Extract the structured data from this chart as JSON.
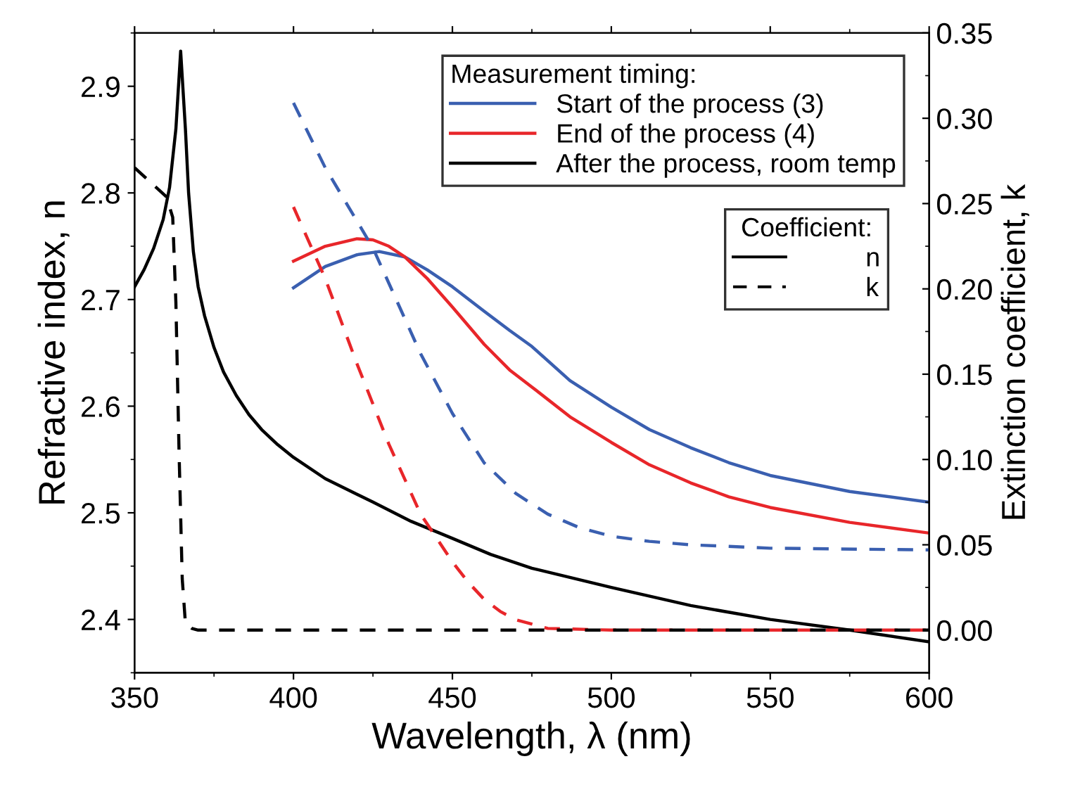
{
  "chart_data": {
    "type": "line",
    "xlabel": "Wavelength, λ (nm)",
    "ylabel": "Refractive index, n",
    "y2label": "Extinction coefficient, k",
    "xlim": [
      350,
      600
    ],
    "xticks": [
      350,
      400,
      450,
      500,
      550,
      600
    ],
    "ylim": [
      2.35,
      2.95
    ],
    "yticks": [
      2.4,
      2.5,
      2.6,
      2.7,
      2.8,
      2.9
    ],
    "y2lim": [
      -0.025,
      0.35
    ],
    "y2ticks": [
      {
        "value": 0,
        "label": "0.00"
      },
      0.05,
      {
        "value": 0.1,
        "label": "0.10"
      },
      0.15,
      {
        "value": 0.2,
        "label": "0.20"
      },
      0.25,
      {
        "value": 0.3,
        "label": "0.30"
      },
      0.35
    ],
    "legend": "top right",
    "legend_title": "Measurement timing:",
    "grid": false,
    "marker": "none",
    "annotations": [
      "Coefficient:",
      "n",
      "k"
    ],
    "series": [
      {
        "name": "Start of the process (3)",
        "color": "#3a5fb0",
        "line_style": "solid",
        "x": [
          400,
          410,
          420,
          427,
          435,
          442,
          450,
          460,
          468,
          475,
          487,
          500,
          512,
          525,
          537,
          550,
          575,
          600
        ],
        "values": [
          2.711,
          2.731,
          2.742,
          2.745,
          2.74,
          2.728,
          2.712,
          2.689,
          2.671,
          2.656,
          2.624,
          2.599,
          2.578,
          2.561,
          2.547,
          2.535,
          2.52,
          2.51
        ]
      },
      {
        "name": "End of the process (4)",
        "color": "#e8262a",
        "line_style": "solid",
        "x": [
          400,
          410,
          420,
          425,
          430,
          435,
          442,
          450,
          460,
          468,
          475,
          487,
          500,
          512,
          525,
          537,
          550,
          575,
          600
        ],
        "values": [
          2.736,
          2.75,
          2.757,
          2.756,
          2.75,
          2.74,
          2.72,
          2.693,
          2.658,
          2.634,
          2.618,
          2.59,
          2.566,
          2.545,
          2.528,
          2.515,
          2.505,
          2.491,
          2.481
        ]
      },
      {
        "name": "After the process, room temp",
        "color": "#000000",
        "line_style": "solid",
        "x": [
          350,
          353,
          356,
          359,
          361,
          363,
          364.5,
          366,
          367,
          368.5,
          370,
          372,
          375,
          378,
          382,
          386,
          390,
          395,
          400,
          410,
          425,
          437,
          450,
          462,
          475,
          500,
          525,
          550,
          575,
          600
        ],
        "values": [
          2.712,
          2.728,
          2.748,
          2.775,
          2.805,
          2.86,
          2.933,
          2.86,
          2.8,
          2.745,
          2.712,
          2.685,
          2.655,
          2.632,
          2.61,
          2.592,
          2.578,
          2.564,
          2.552,
          2.532,
          2.51,
          2.492,
          2.476,
          2.461,
          2.448,
          2.43,
          2.413,
          2.4,
          2.39,
          2.379
        ]
      },
      {
        "color": "#3a5fb0",
        "axis": "y2",
        "line_style": "dashed",
        "x": [
          400,
          410,
          425,
          440,
          450,
          460,
          470,
          480,
          490,
          500,
          512,
          525,
          550,
          600
        ],
        "values": [
          0.309,
          0.271,
          0.224,
          0.162,
          0.127,
          0.098,
          0.08,
          0.068,
          0.06,
          0.055,
          0.052,
          0.05,
          0.048,
          0.047
        ]
      },
      {
        "color": "#e8262a",
        "axis": "y2",
        "line_style": "dashed",
        "x": [
          400,
          410,
          420,
          430,
          440,
          450,
          455,
          460,
          465,
          470,
          480,
          500,
          600
        ],
        "values": [
          0.248,
          0.206,
          0.156,
          0.109,
          0.068,
          0.04,
          0.028,
          0.018,
          0.011,
          0.006,
          0.001,
          0.0,
          0.0
        ]
      },
      {
        "color": "#000000",
        "axis": "y2",
        "line_style": "dashed",
        "x": [
          350,
          360,
          362,
          363,
          364,
          365,
          366,
          368,
          370,
          600
        ],
        "values": [
          0.271,
          0.254,
          0.242,
          0.192,
          0.104,
          0.03,
          0.004,
          0.001,
          0.0,
          0.0
        ]
      }
    ]
  }
}
